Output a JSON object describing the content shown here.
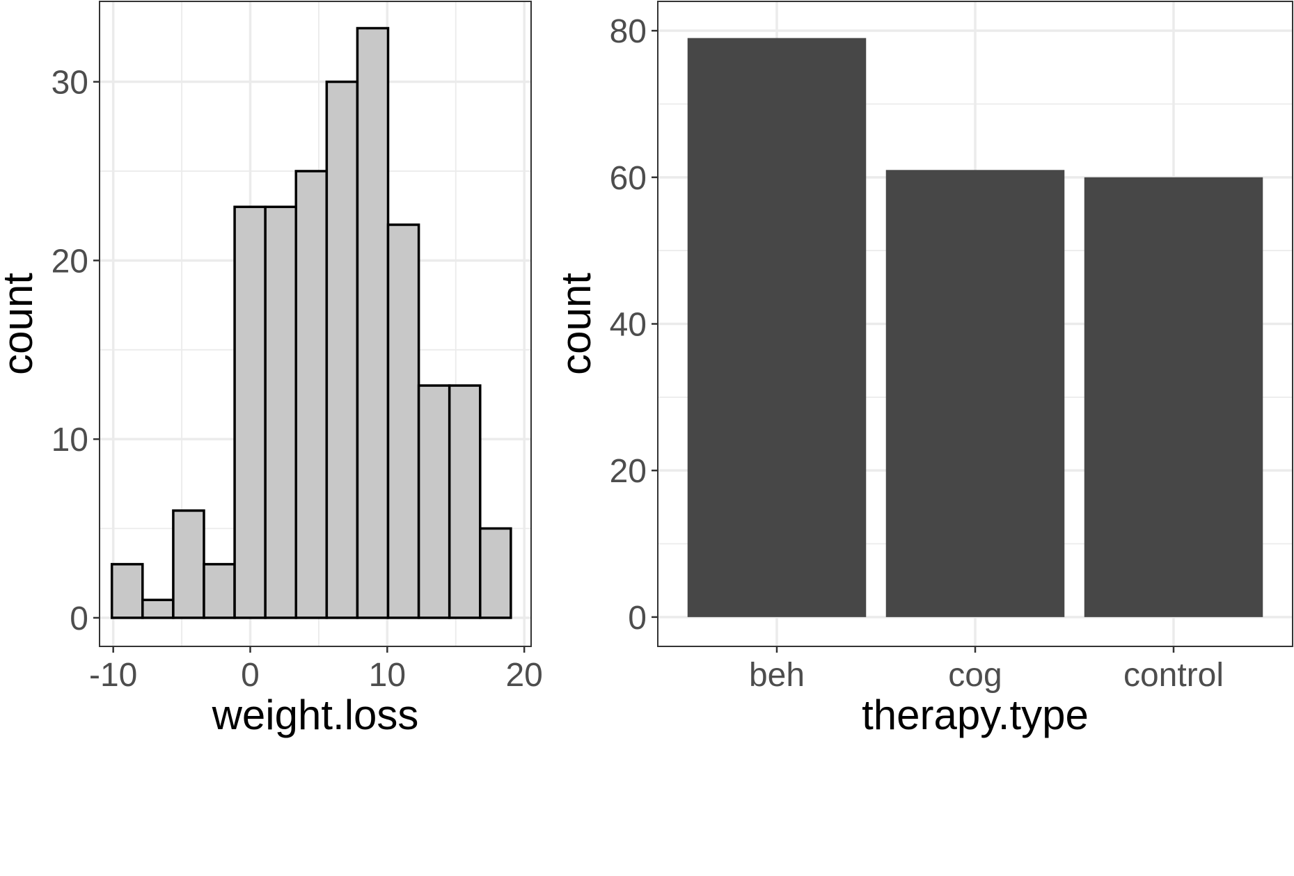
{
  "chart_data": [
    {
      "type": "bar",
      "subtype": "histogram",
      "xlabel": "weight.loss",
      "ylabel": "count",
      "xlim": [
        -11,
        20.5
      ],
      "ylim": [
        -1.6,
        34.5
      ],
      "x_ticks": [
        -10,
        0,
        10,
        20
      ],
      "y_ticks": [
        0,
        10,
        20,
        30
      ],
      "grid": true,
      "bin_width": 2.24,
      "bins": [
        {
          "start": -10.1,
          "end": -7.86,
          "count": 3
        },
        {
          "start": -7.86,
          "end": -5.62,
          "count": 1
        },
        {
          "start": -5.62,
          "end": -3.38,
          "count": 6
        },
        {
          "start": -3.38,
          "end": -1.14,
          "count": 3
        },
        {
          "start": -1.14,
          "end": 1.1,
          "count": 23
        },
        {
          "start": 1.1,
          "end": 3.34,
          "count": 23
        },
        {
          "start": 3.34,
          "end": 5.58,
          "count": 25
        },
        {
          "start": 5.58,
          "end": 7.82,
          "count": 30
        },
        {
          "start": 7.82,
          "end": 10.06,
          "count": 33
        },
        {
          "start": 10.06,
          "end": 12.3,
          "count": 22
        },
        {
          "start": 12.3,
          "end": 14.54,
          "count": 13
        },
        {
          "start": 14.54,
          "end": 16.78,
          "count": 13
        },
        {
          "start": 16.78,
          "end": 19.02,
          "count": 5
        }
      ],
      "colors": {
        "fill": "#c8c8c8",
        "outline": "#000000"
      }
    },
    {
      "type": "bar",
      "xlabel": "therapy.type",
      "ylabel": "count",
      "categories": [
        "beh",
        "cog",
        "control"
      ],
      "values": [
        79,
        61,
        60
      ],
      "ylim": [
        -4,
        84
      ],
      "y_ticks": [
        0,
        20,
        40,
        60,
        80
      ],
      "grid": true,
      "colors": {
        "fill": "#474747"
      }
    }
  ]
}
